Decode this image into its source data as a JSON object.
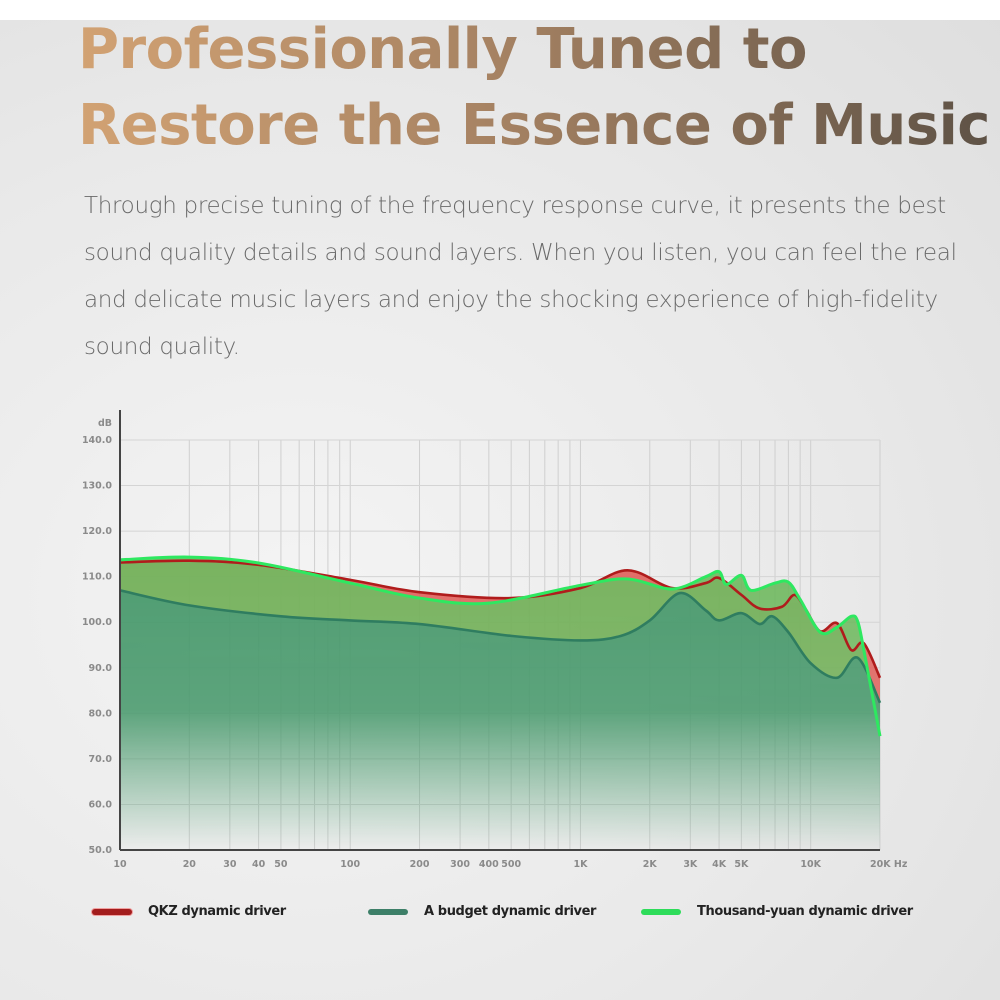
{
  "title_lines": [
    "Professionally Tuned to",
    "Restore the Essence of Music"
  ],
  "description": "Through precise tuning of the frequency response curve, it presents the best sound quality details and sound layers. When you listen, you can feel the real and delicate music layers and enjoy the shocking experience of high-fidelity sound quality.",
  "chart_data": {
    "type": "area",
    "title": "",
    "xlabel": "Hz",
    "ylabel": "dB",
    "x_scale": "log",
    "xlim": [
      10,
      20000
    ],
    "ylim": [
      50,
      140
    ],
    "grid": true,
    "legend_position": "bottom",
    "y_ticks": [
      "50.0",
      "60.0",
      "70.0",
      "80.0",
      "90.0",
      "100.0",
      "110.0",
      "120.0",
      "130.0",
      "140.0"
    ],
    "x_ticks": [
      {
        "v": 10,
        "l": "10"
      },
      {
        "v": 20,
        "l": "20"
      },
      {
        "v": 30,
        "l": "30"
      },
      {
        "v": 40,
        "l": "40"
      },
      {
        "v": 50,
        "l": "50"
      },
      {
        "v": 100,
        "l": "100"
      },
      {
        "v": 200,
        "l": "200"
      },
      {
        "v": 300,
        "l": "300"
      },
      {
        "v": 400,
        "l": "400"
      },
      {
        "v": 500,
        "l": "500"
      },
      {
        "v": 1000,
        "l": "1K"
      },
      {
        "v": 2000,
        "l": "2K"
      },
      {
        "v": 3000,
        "l": "3K"
      },
      {
        "v": 4000,
        "l": "4K"
      },
      {
        "v": 5000,
        "l": "5K"
      },
      {
        "v": 10000,
        "l": "10K"
      },
      {
        "v": 20000,
        "l": "20K Hz"
      }
    ],
    "series": [
      {
        "name": "QKZ dynamic driver",
        "color": "#b01c1c",
        "fill": "#e0605a",
        "x": [
          10,
          20,
          40,
          100,
          200,
          500,
          1000,
          1600,
          2500,
          3500,
          4000,
          5000,
          6000,
          7500,
          8500,
          9500,
          11000,
          13000,
          15000,
          17000,
          20000
        ],
        "y": [
          113.1,
          113.5,
          112.6,
          109.3,
          106.6,
          105.3,
          107.5,
          111.4,
          107.5,
          108.6,
          109.7,
          106,
          103,
          103.4,
          106,
          102.9,
          98,
          99.8,
          93.9,
          95.4,
          87.8
        ]
      },
      {
        "name": "Thousand-yuan dynamic driver",
        "color": "#2ee860",
        "fill": "#6fb85e",
        "x": [
          10,
          20,
          40,
          100,
          200,
          400,
          1000,
          1600,
          2500,
          3500,
          4000,
          4300,
          5000,
          5500,
          7000,
          8000,
          9000,
          11000,
          13000,
          15000,
          16000,
          17000,
          20000
        ],
        "y": [
          113.7,
          114.3,
          113,
          108.6,
          105.3,
          104.2,
          108.1,
          109.5,
          107.3,
          110,
          111.1,
          108.3,
          110.3,
          107,
          108.6,
          108.8,
          105,
          97.8,
          98.9,
          101.3,
          100.2,
          94,
          75
        ]
      },
      {
        "name": "A budget dynamic driver",
        "color": "#2f7d60",
        "fill": "#4a9a70",
        "x": [
          10,
          20,
          50,
          100,
          200,
          500,
          1000,
          1500,
          2000,
          2700,
          3500,
          4000,
          5000,
          6000,
          6800,
          8000,
          10000,
          13000,
          16000,
          20000
        ],
        "y": [
          107,
          103.7,
          101.3,
          100.4,
          99.6,
          97,
          96,
          97,
          100.4,
          106.4,
          102.6,
          100.4,
          102,
          99.6,
          101.3,
          97.8,
          91,
          87.8,
          92.2,
          82.3
        ]
      }
    ]
  },
  "legend": [
    {
      "label": "QKZ dynamic driver",
      "color": "#a31d1d"
    },
    {
      "label": "A budget dynamic driver",
      "color": "#3d7f68"
    },
    {
      "label": "Thousand-yuan dynamic driver",
      "color": "#2edc5a"
    }
  ]
}
